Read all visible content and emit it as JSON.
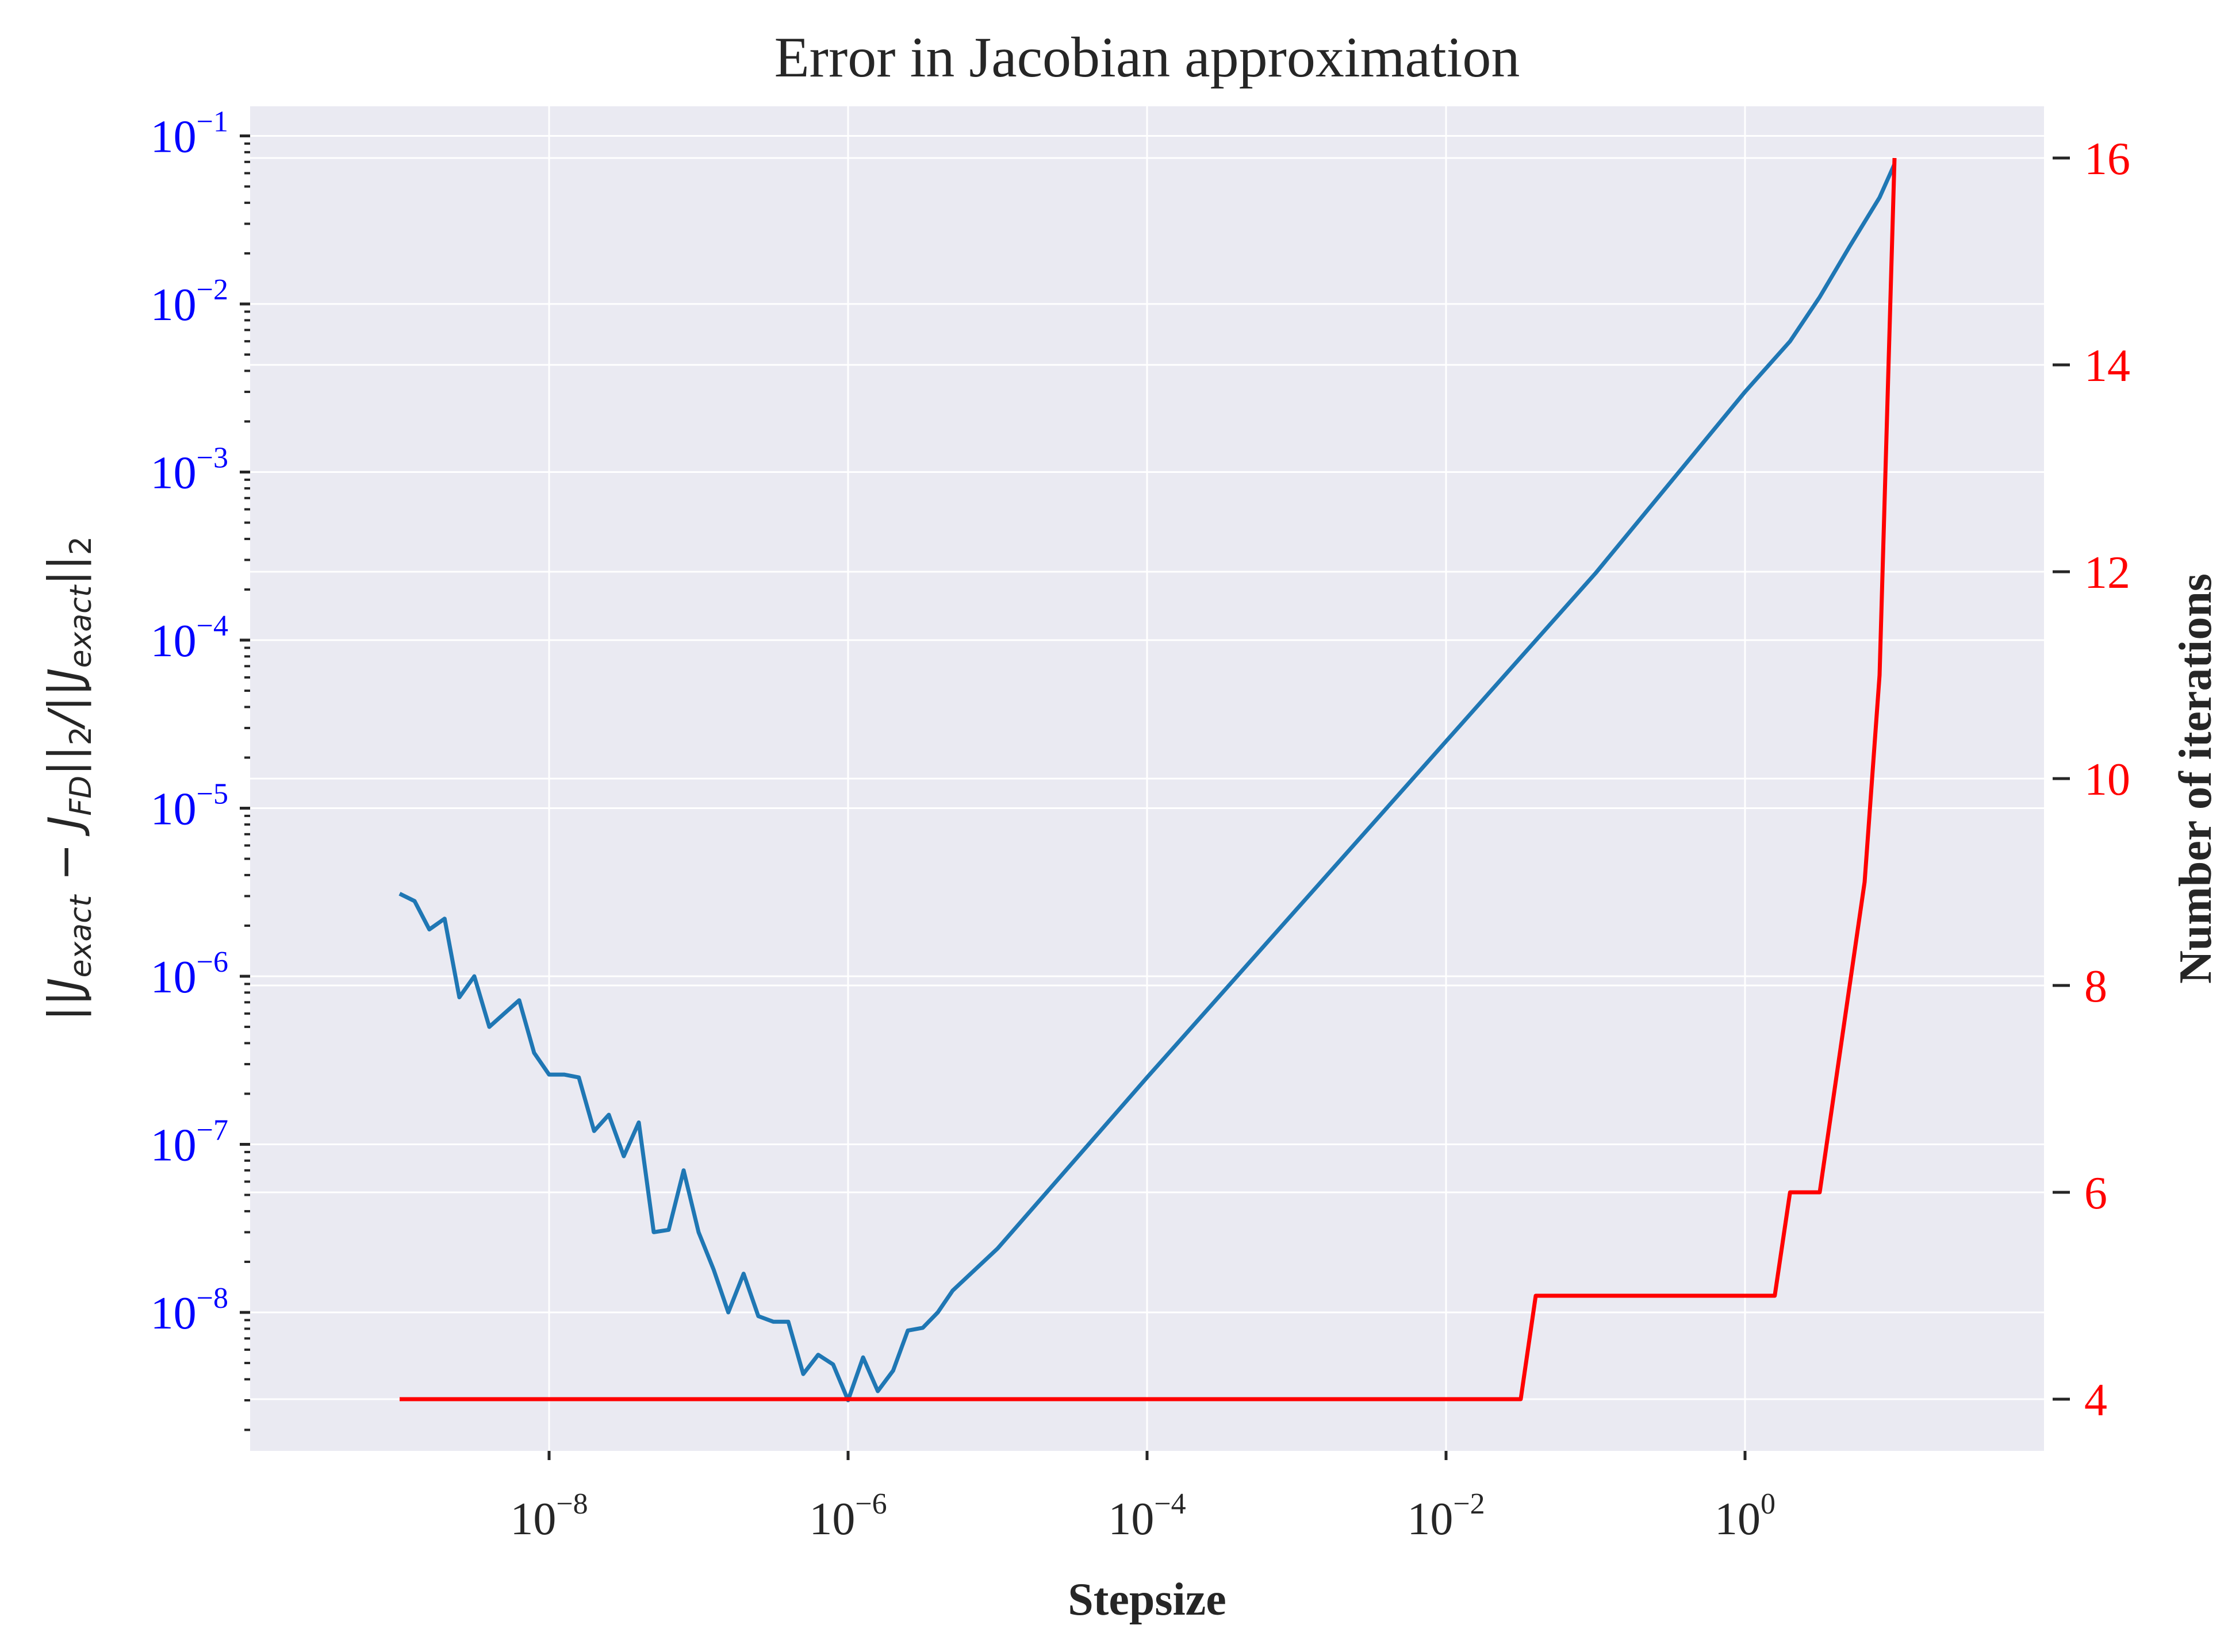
{
  "chart_data": {
    "type": "line",
    "title": "Error in Jacobian approximation",
    "xlabel": "Stepsize",
    "ylabel": "||J_exact − J_FD||_2/||J_exact||_2",
    "ylabel_parts": {
      "part1": "||J",
      "sub1": "exact",
      "part2": " − J",
      "sub2": "FD",
      "part3": "||",
      "sub3": "2",
      "part4": "/||J",
      "sub4": "exact",
      "part5": "||",
      "sub5": "2"
    },
    "y2label": "Number of iterations",
    "x_scale": "log",
    "y_scale": "log",
    "xlim": [
      1e-10,
      100
    ],
    "ylim": [
      1.5e-09,
      0.15
    ],
    "y2lim": [
      3.5,
      16.5
    ],
    "x_ticks": [
      {
        "base": "10",
        "exp": "−8",
        "value": 1e-08
      },
      {
        "base": "10",
        "exp": "−6",
        "value": 1e-06
      },
      {
        "base": "10",
        "exp": "−4",
        "value": 0.0001
      },
      {
        "base": "10",
        "exp": "−2",
        "value": 0.01
      },
      {
        "base": "10",
        "exp": "0",
        "value": 1
      }
    ],
    "y_ticks": [
      {
        "base": "10",
        "exp": "−1",
        "value": 0.1
      },
      {
        "base": "10",
        "exp": "−2",
        "value": 0.01
      },
      {
        "base": "10",
        "exp": "−3",
        "value": 0.001
      },
      {
        "base": "10",
        "exp": "−4",
        "value": 0.0001
      },
      {
        "base": "10",
        "exp": "−5",
        "value": 1e-05
      },
      {
        "base": "10",
        "exp": "−6",
        "value": 1e-06
      },
      {
        "base": "10",
        "exp": "−7",
        "value": 1e-07
      },
      {
        "base": "10",
        "exp": "−8",
        "value": 1e-08
      }
    ],
    "y2_ticks": [
      {
        "label": "4",
        "value": 4
      },
      {
        "label": "6",
        "value": 6
      },
      {
        "label": "8",
        "value": 8
      },
      {
        "label": "10",
        "value": 10
      },
      {
        "label": "12",
        "value": 12
      },
      {
        "label": "14",
        "value": 14
      },
      {
        "label": "16",
        "value": 16
      }
    ],
    "grid": true,
    "series": [
      {
        "axis": "left",
        "color": "#1f77b4",
        "points": [
          [
            1e-09,
            3.1e-06
          ],
          [
            1.26e-09,
            2.8e-06
          ],
          [
            1.58e-09,
            1.9e-06
          ],
          [
            2e-09,
            2.2e-06
          ],
          [
            2.51e-09,
            7.5e-07
          ],
          [
            3.16e-09,
            1e-06
          ],
          [
            3.98e-09,
            5e-07
          ],
          [
            5.01e-09,
            6e-07
          ],
          [
            6.31e-09,
            7.2e-07
          ],
          [
            7.94e-09,
            3.5e-07
          ],
          [
            1e-08,
            2.6e-07
          ],
          [
            1.26e-08,
            2.6e-07
          ],
          [
            1.58e-08,
            2.5e-07
          ],
          [
            2e-08,
            1.2e-07
          ],
          [
            2.51e-08,
            1.5e-07
          ],
          [
            3.16e-08,
            8.5e-08
          ],
          [
            3.98e-08,
            1.35e-07
          ],
          [
            5.01e-08,
            3e-08
          ],
          [
            6.31e-08,
            3.1e-08
          ],
          [
            7.94e-08,
            7e-08
          ],
          [
            1e-07,
            3e-08
          ],
          [
            1.26e-07,
            1.8e-08
          ],
          [
            1.58e-07,
            1e-08
          ],
          [
            2e-07,
            1.7e-08
          ],
          [
            2.51e-07,
            9.5e-09
          ],
          [
            3.16e-07,
            8.8e-09
          ],
          [
            3.98e-07,
            8.8e-09
          ],
          [
            5.01e-07,
            4.3e-09
          ],
          [
            6.31e-07,
            5.6e-09
          ],
          [
            7.94e-07,
            4.9e-09
          ],
          [
            1e-06,
            3e-09
          ],
          [
            1.26e-06,
            5.4e-09
          ],
          [
            1.58e-06,
            3.4e-09
          ],
          [
            2e-06,
            4.5e-09
          ],
          [
            2.51e-06,
            7.8e-09
          ],
          [
            3.16e-06,
            8.1e-09
          ],
          [
            3.98e-06,
            1e-08
          ],
          [
            5.01e-06,
            1.35e-08
          ],
          [
            1e-05,
            2.4e-08
          ],
          [
            0.0001,
            2.5e-07
          ],
          [
            0.001,
            2.5e-06
          ],
          [
            0.01,
            2.5e-05
          ],
          [
            0.1,
            0.00025
          ],
          [
            1,
            0.003
          ],
          [
            2,
            0.006
          ],
          [
            3.16,
            0.011
          ],
          [
            5.01,
            0.022
          ],
          [
            7.94,
            0.043
          ],
          [
            10,
            0.068
          ]
        ]
      },
      {
        "axis": "right",
        "color": "#ff0000",
        "points": [
          [
            1e-09,
            4
          ],
          [
            0.0316,
            4
          ],
          [
            0.0398,
            5
          ],
          [
            1.58,
            5
          ],
          [
            2,
            6
          ],
          [
            3.16,
            6
          ],
          [
            6.31,
            9
          ],
          [
            7.94,
            11
          ],
          [
            10,
            16
          ]
        ]
      }
    ]
  }
}
